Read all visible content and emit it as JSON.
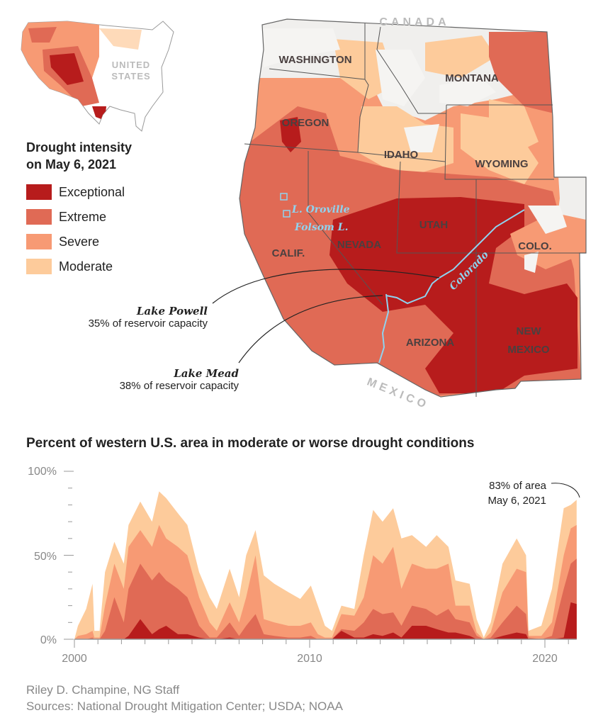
{
  "inset": {
    "label_line1": "UNITED",
    "label_line2": "STATES"
  },
  "legend": {
    "title_line1": "Drought intensity",
    "title_line2": "on May 6, 2021",
    "items": [
      {
        "label": "Exceptional",
        "color": "#b71c1c"
      },
      {
        "label": "Extreme",
        "color": "#e06a55"
      },
      {
        "label": "Severe",
        "color": "#f79a74"
      },
      {
        "label": "Moderate",
        "color": "#fdcb9b"
      }
    ]
  },
  "map": {
    "countries": {
      "north": "CANADA",
      "south": "MEXICO"
    },
    "states": [
      "WASHINGTON",
      "MONTANA",
      "OREGON",
      "IDAHO",
      "WYOMING",
      "UTAH",
      "NEVADA",
      "CALIF.",
      "COLO.",
      "ARIZONA",
      "NEW",
      "MEXICO"
    ],
    "lakes": {
      "oroville": "L. Oroville",
      "folsom": "Folsom L."
    },
    "river": "Colorado",
    "callouts": {
      "powell": {
        "name": "Lake Powell",
        "detail": "35% of reservoir capacity"
      },
      "mead": {
        "name": "Lake Mead",
        "detail": "38% of reservoir capacity"
      }
    }
  },
  "chart_data": {
    "type": "area",
    "title": "Percent of western U.S. area in moderate or worse drought conditions",
    "xlabel": "",
    "ylabel": "",
    "xlim": [
      2000,
      2021.35
    ],
    "ylim": [
      0,
      100
    ],
    "x_ticks": [
      2000,
      2010,
      2020
    ],
    "x_tick_labels": [
      "2000",
      "2010",
      "2020"
    ],
    "y_ticks": [
      0,
      50,
      100
    ],
    "y_tick_labels": [
      "0%",
      "50%",
      "100%"
    ],
    "annotation": {
      "line1": "83% of area",
      "line2": "May 6, 2021",
      "x": 2021.35,
      "y": 83
    },
    "x": [
      2000.0,
      2000.15,
      2000.5,
      2000.77,
      2000.85,
      2001.07,
      2001.3,
      2001.7,
      2002.1,
      2002.3,
      2002.8,
      2003.3,
      2003.6,
      2003.9,
      2004.4,
      2004.8,
      2005.3,
      2005.75,
      2006.05,
      2006.6,
      2007.0,
      2007.3,
      2007.7,
      2008.05,
      2008.5,
      2009.1,
      2009.6,
      2010.05,
      2010.35,
      2010.65,
      2010.95,
      2011.35,
      2011.9,
      2012.3,
      2012.7,
      2013.1,
      2013.55,
      2013.9,
      2014.35,
      2014.95,
      2015.4,
      2015.9,
      2016.2,
      2016.8,
      2017.1,
      2017.4,
      2017.7,
      2018.2,
      2018.8,
      2019.2,
      2019.3,
      2019.85,
      2020.3,
      2020.8,
      2021.1,
      2021.35
    ],
    "series": [
      {
        "name": "Moderate",
        "color": "#fdcb9b",
        "values": [
          0,
          8,
          18,
          33,
          5,
          5,
          40,
          58,
          45,
          68,
          82,
          70,
          88,
          84,
          75,
          68,
          40,
          25,
          18,
          42,
          25,
          50,
          65,
          38,
          33,
          28,
          24,
          32,
          20,
          8,
          5,
          20,
          18,
          50,
          77,
          70,
          78,
          60,
          62,
          55,
          62,
          55,
          35,
          33,
          12,
          1,
          10,
          45,
          60,
          50,
          5,
          8,
          30,
          78,
          80,
          83
        ]
      },
      {
        "name": "Severe",
        "color": "#f79a74",
        "values": [
          0,
          2,
          3,
          5,
          1,
          1,
          20,
          45,
          30,
          55,
          65,
          55,
          68,
          60,
          55,
          50,
          25,
          10,
          5,
          22,
          10,
          25,
          50,
          12,
          10,
          8,
          8,
          10,
          3,
          1,
          1,
          15,
          14,
          25,
          50,
          45,
          55,
          30,
          45,
          42,
          42,
          45,
          20,
          20,
          4,
          0,
          4,
          28,
          42,
          40,
          2,
          2,
          10,
          50,
          66,
          68
        ]
      },
      {
        "name": "Extreme",
        "color": "#e06a55",
        "values": [
          0,
          0,
          0,
          1,
          0,
          0,
          5,
          25,
          10,
          30,
          45,
          35,
          40,
          35,
          30,
          25,
          8,
          1,
          1,
          10,
          2,
          8,
          15,
          3,
          2,
          1,
          1,
          2,
          0,
          0,
          0,
          6,
          5,
          10,
          18,
          15,
          16,
          8,
          20,
          18,
          14,
          18,
          12,
          10,
          2,
          0,
          1,
          10,
          20,
          15,
          1,
          0,
          2,
          30,
          45,
          48
        ]
      },
      {
        "name": "Exceptional",
        "color": "#b71c1c",
        "values": [
          0,
          0,
          0,
          0,
          0,
          0,
          0,
          0,
          0,
          2,
          12,
          3,
          6,
          8,
          3,
          3,
          1,
          0,
          0,
          1,
          0,
          0,
          0,
          0,
          0,
          0,
          0,
          0,
          0,
          0,
          0,
          5,
          1,
          1,
          3,
          2,
          4,
          1,
          8,
          8,
          6,
          4,
          4,
          2,
          0,
          0,
          0,
          2,
          4,
          3,
          0,
          0,
          0,
          1,
          22,
          21
        ]
      }
    ],
    "series_note": "values are cumulative: moderate-or-worse, severe-or-worse, extreme-or-worse, exceptional"
  },
  "credits": {
    "author": "Riley D. Champine, NG Staff",
    "sources": "Sources: National Drought Mitigation Center; USDA; NOAA"
  }
}
